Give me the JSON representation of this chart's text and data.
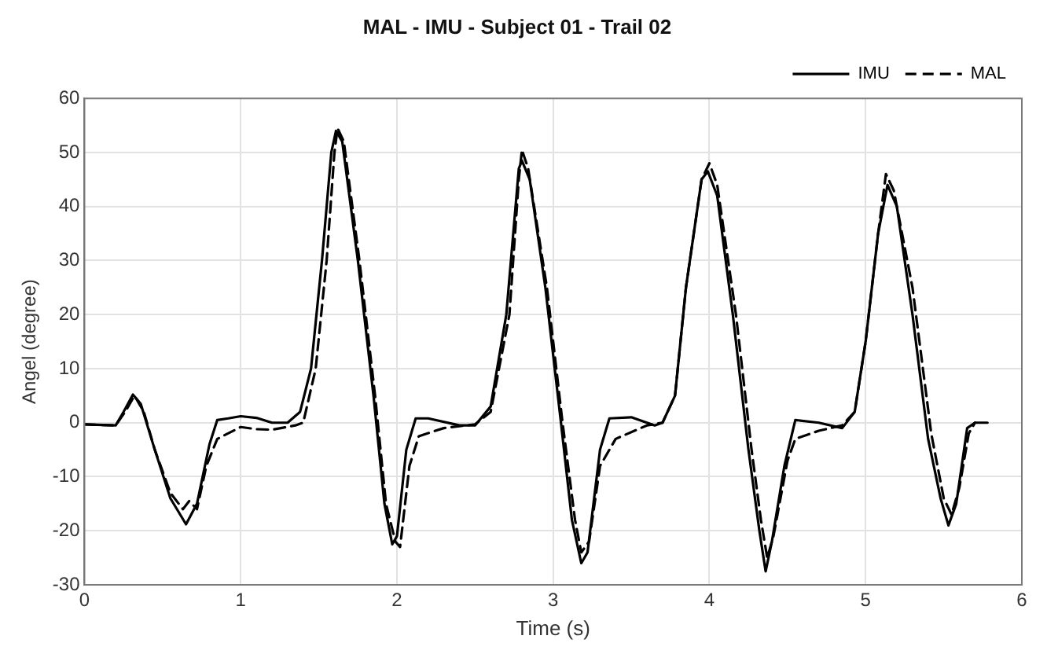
{
  "chart_data": {
    "type": "line",
    "title": "MAL - IMU - Subject 01 - Trail 02",
    "xlabel": "Time (s)",
    "ylabel": "Angel (degree)",
    "xlim": [
      0,
      6
    ],
    "xticks": [
      0,
      1,
      2,
      3,
      4,
      5,
      6
    ],
    "ylim": [
      -30,
      60
    ],
    "yticks": [
      -30,
      -20,
      -10,
      0,
      10,
      20,
      30,
      40,
      50,
      60
    ],
    "grid": true,
    "legend": "top right",
    "marker": "none",
    "series": [
      {
        "name": "IMU",
        "color": "#000000",
        "line_style": "solid",
        "x": [
          0,
          0.2,
          0.25,
          0.31,
          0.36,
          0.45,
          0.55,
          0.65,
          0.72,
          0.8,
          0.85,
          0.92,
          1.0,
          1.1,
          1.2,
          1.3,
          1.38,
          1.45,
          1.52,
          1.58,
          1.61,
          1.65,
          1.75,
          1.85,
          1.92,
          1.97,
          2.0,
          2.06,
          2.12,
          2.2,
          2.4,
          2.5,
          2.6,
          2.7,
          2.78,
          2.8,
          2.85,
          2.95,
          3.05,
          3.12,
          3.18,
          3.22,
          3.3,
          3.36,
          3.5,
          3.65,
          3.7,
          3.78,
          3.85,
          3.95,
          3.99,
          4.05,
          4.15,
          4.25,
          4.32,
          4.36,
          4.4,
          4.48,
          4.55,
          4.7,
          4.85,
          4.93,
          5.0,
          5.08,
          5.14,
          5.2,
          5.3,
          5.4,
          5.48,
          5.53,
          5.58,
          5.65,
          5.7,
          5.78
        ],
        "values": [
          -0.3,
          -0.5,
          2,
          5.2,
          3.5,
          -5,
          -14,
          -18.8,
          -15,
          -4,
          0.5,
          0.8,
          1.2,
          0.9,
          0,
          0,
          2,
          10,
          30,
          50,
          54,
          52,
          30,
          5,
          -15,
          -22.5,
          -21,
          -5,
          0.8,
          0.8,
          -0.5,
          -0.5,
          3,
          20,
          47,
          48.5,
          45,
          25,
          0,
          -18,
          -26,
          -24,
          -5,
          0.8,
          1,
          -0.5,
          0,
          5,
          25,
          45,
          46.5,
          42,
          20,
          -5,
          -20,
          -27.5,
          -22,
          -8,
          0.5,
          0,
          -1,
          2,
          15,
          35,
          44,
          40,
          20,
          -3,
          -14,
          -19,
          -15,
          -1,
          0,
          0
        ]
      },
      {
        "name": "MAL",
        "color": "#000000",
        "line_style": "dashed",
        "x": [
          0,
          0.2,
          0.26,
          0.32,
          0.38,
          0.45,
          0.55,
          0.63,
          0.67,
          0.72,
          0.78,
          0.85,
          1.0,
          1.1,
          1.2,
          1.35,
          1.4,
          1.48,
          1.55,
          1.6,
          1.62,
          1.66,
          1.76,
          1.86,
          1.93,
          1.99,
          2.02,
          2.08,
          2.14,
          2.3,
          2.5,
          2.6,
          2.72,
          2.78,
          2.8,
          2.84,
          2.96,
          3.06,
          3.14,
          3.18,
          3.23,
          3.3,
          3.4,
          3.6,
          3.7,
          3.78,
          3.85,
          3.95,
          4.0,
          4.05,
          4.17,
          4.27,
          4.33,
          4.37,
          4.41,
          4.5,
          4.55,
          4.7,
          4.85,
          4.93,
          5.0,
          5.08,
          5.13,
          5.18,
          5.3,
          5.42,
          5.5,
          5.55,
          5.6,
          5.66,
          5.7
        ],
        "values": [
          -0.3,
          -0.5,
          2,
          5,
          2,
          -5,
          -13,
          -16,
          -14.5,
          -16,
          -8,
          -3,
          -0.8,
          -1.2,
          -1.3,
          -0.5,
          0,
          10,
          30,
          50,
          54.5,
          52,
          30,
          5,
          -15,
          -22,
          -23,
          -8,
          -2.5,
          -1,
          -0.3,
          2,
          20,
          45,
          50.5,
          47,
          25,
          0,
          -18,
          -24,
          -22,
          -8,
          -3,
          -0.5,
          0,
          5,
          25,
          45,
          48,
          44,
          20,
          -5,
          -18,
          -25,
          -21,
          -7,
          -3,
          -1.5,
          -0.5,
          2,
          15,
          35,
          46,
          43,
          25,
          -2,
          -14,
          -17,
          -12,
          -2,
          0
        ]
      }
    ]
  }
}
